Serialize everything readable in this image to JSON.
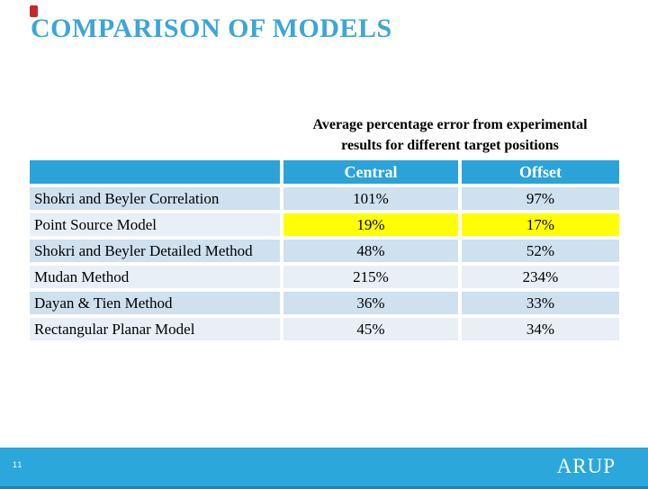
{
  "slide": {
    "title": "COMPARISON OF MODELS",
    "page_number": "11",
    "logo_text": "ARUP"
  },
  "table": {
    "caption_line1": "Average percentage error from experimental",
    "caption_line2": "results for different target positions",
    "columns": [
      "Central",
      "Offset"
    ],
    "rows": [
      {
        "label": "Shokri and Beyler Correlation",
        "central": "101%",
        "offset": "97%",
        "highlight": false
      },
      {
        "label": "Point Source Model",
        "central": "19%",
        "offset": "17%",
        "highlight": true
      },
      {
        "label": "Shokri and Beyler Detailed Method",
        "central": "48%",
        "offset": "52%",
        "highlight": false
      },
      {
        "label": "Mudan Method",
        "central": "215%",
        "offset": "234%",
        "highlight": false
      },
      {
        "label": "Dayan & Tien Method",
        "central": "36%",
        "offset": "33%",
        "highlight": false
      },
      {
        "label": "Rectangular Planar Model",
        "central": "45%",
        "offset": "34%",
        "highlight": false
      }
    ]
  },
  "colors": {
    "title_blue": "#3CA6D5",
    "header_blue": "#2BA3D8",
    "bar_blue": "#2BA7DC",
    "bar_edge": "#1E85B0",
    "row_odd": "#CFE0EF",
    "row_even": "#E8EFF7",
    "highlight_yellow": "#FFFF00",
    "accent_red": "#C52828"
  }
}
